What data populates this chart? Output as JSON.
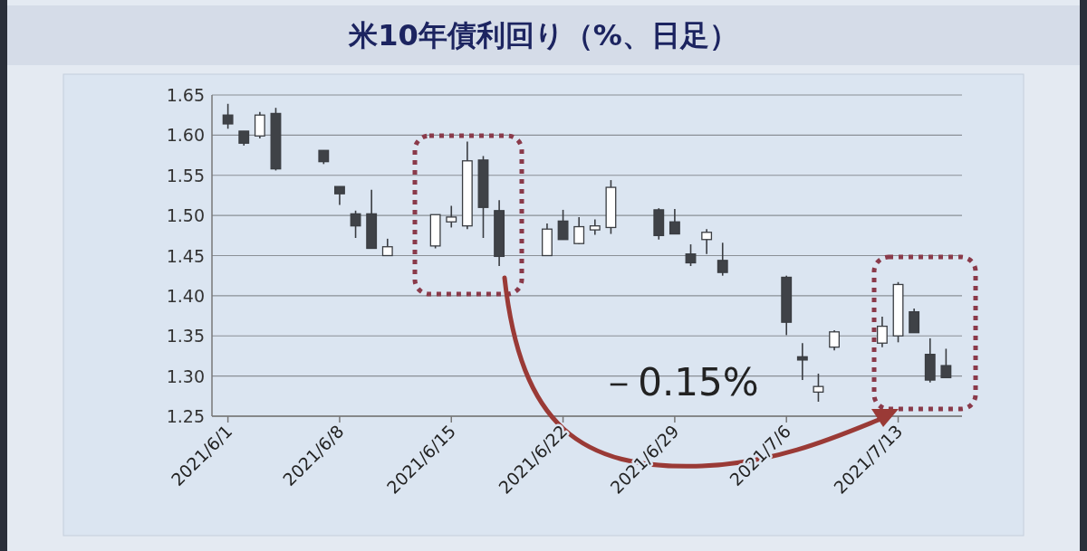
{
  "chart_data": {
    "type": "candlestick",
    "title": "米10年債利回り（%、日足）",
    "x": [
      "2021-06-01",
      "2021-06-02",
      "2021-06-03",
      "2021-06-04",
      "2021-06-07",
      "2021-06-08",
      "2021-06-09",
      "2021-06-10",
      "2021-06-11",
      "2021-06-14",
      "2021-06-15",
      "2021-06-16",
      "2021-06-17",
      "2021-06-18",
      "2021-06-21",
      "2021-06-22",
      "2021-06-23",
      "2021-06-24",
      "2021-06-25",
      "2021-06-28",
      "2021-06-29",
      "2021-06-30",
      "2021-07-01",
      "2021-07-02",
      "2021-07-06",
      "2021-07-07",
      "2021-07-08",
      "2021-07-09",
      "2021-07-12",
      "2021-07-13",
      "2021-07-14",
      "2021-07-15",
      "2021-07-16"
    ],
    "ohlc": [
      [
        1.625,
        1.639,
        1.608,
        1.614
      ],
      [
        1.605,
        1.605,
        1.587,
        1.59
      ],
      [
        1.599,
        1.629,
        1.596,
        1.625
      ],
      [
        1.627,
        1.634,
        1.556,
        1.558
      ],
      [
        1.581,
        1.581,
        1.564,
        1.567
      ],
      [
        1.536,
        1.536,
        1.513,
        1.527
      ],
      [
        1.502,
        1.506,
        1.472,
        1.487
      ],
      [
        1.502,
        1.532,
        1.459,
        1.459
      ],
      [
        1.45,
        1.471,
        1.45,
        1.461
      ],
      [
        1.462,
        1.501,
        1.459,
        1.501
      ],
      [
        1.492,
        1.512,
        1.485,
        1.498
      ],
      [
        1.487,
        1.592,
        1.483,
        1.568
      ],
      [
        1.569,
        1.574,
        1.472,
        1.51
      ],
      [
        1.506,
        1.519,
        1.437,
        1.449
      ],
      [
        1.45,
        1.49,
        1.45,
        1.483
      ],
      [
        1.493,
        1.507,
        1.47,
        1.47
      ],
      [
        1.465,
        1.498,
        1.464,
        1.486
      ],
      [
        1.482,
        1.495,
        1.476,
        1.487
      ],
      [
        1.485,
        1.544,
        1.477,
        1.535
      ],
      [
        1.507,
        1.509,
        1.47,
        1.475
      ],
      [
        1.492,
        1.508,
        1.477,
        1.477
      ],
      [
        1.452,
        1.464,
        1.437,
        1.441
      ],
      [
        1.47,
        1.483,
        1.452,
        1.479
      ],
      [
        1.444,
        1.466,
        1.425,
        1.429
      ],
      [
        1.423,
        1.425,
        1.351,
        1.367
      ],
      [
        1.324,
        1.341,
        1.295,
        1.32
      ],
      [
        1.28,
        1.303,
        1.268,
        1.287
      ],
      [
        1.336,
        1.357,
        1.332,
        1.355
      ],
      [
        1.341,
        1.374,
        1.336,
        1.362
      ],
      [
        1.35,
        1.417,
        1.342,
        1.414
      ],
      [
        1.38,
        1.384,
        1.354,
        1.354
      ],
      [
        1.327,
        1.347,
        1.292,
        1.295
      ],
      [
        1.313,
        1.334,
        1.298,
        1.298
      ]
    ],
    "xlim": [
      "2021-05-31",
      "2021-07-17"
    ],
    "xticks": [
      {
        "value": "2021-06-01",
        "label": "2021/6/1"
      },
      {
        "value": "2021-06-08",
        "label": "2021/6/8"
      },
      {
        "value": "2021-06-15",
        "label": "2021/6/15"
      },
      {
        "value": "2021-06-22",
        "label": "2021/6/22"
      },
      {
        "value": "2021-06-29",
        "label": "2021/6/29"
      },
      {
        "value": "2021-07-06",
        "label": "2021/7/6"
      },
      {
        "value": "2021-07-13",
        "label": "2021/7/13"
      }
    ],
    "ylim": [
      1.25,
      1.65
    ],
    "yticks": [
      1.25,
      {
        "value": 1.3,
        "label": "1.30"
      },
      1.35,
      {
        "value": 1.4,
        "label": "1.40"
      },
      1.45,
      {
        "value": 1.5,
        "label": "1.50"
      },
      1.55,
      {
        "value": 1.6,
        "label": "1.60"
      },
      1.65
    ],
    "grid": "y",
    "annotations": [
      "－0.15%"
    ]
  }
}
